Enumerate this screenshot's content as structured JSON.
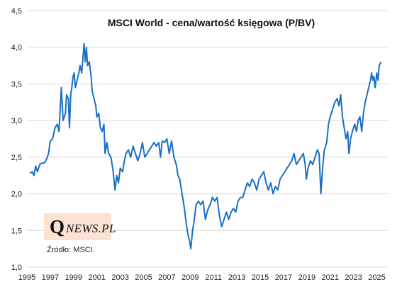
{
  "chart_data": {
    "type": "line",
    "title": "MSCI World - cena/wartość księgowa (P/BV)",
    "xlim": [
      1995,
      2026
    ],
    "ylim": [
      1.0,
      4.5
    ],
    "xticks": [
      "1995",
      "1997",
      "1999",
      "2001",
      "2003",
      "2005",
      "2007",
      "2009",
      "2011",
      "2013",
      "2015",
      "2017",
      "2019",
      "2021",
      "2023",
      "2025"
    ],
    "yticks": [
      "1,0",
      "1,5",
      "2,0",
      "2,5",
      "3,0",
      "3,5",
      "4,0",
      "4,5"
    ],
    "grid": "horizontal",
    "legend": "none",
    "series": [
      {
        "color": "#1a6fc4",
        "points": [
          [
            1995.25,
            2.28
          ],
          [
            1995.45,
            2.3
          ],
          [
            1995.6,
            2.25
          ],
          [
            1995.75,
            2.38
          ],
          [
            1995.9,
            2.3
          ],
          [
            1996.1,
            2.4
          ],
          [
            1996.3,
            2.42
          ],
          [
            1996.5,
            2.42
          ],
          [
            1996.7,
            2.48
          ],
          [
            1996.85,
            2.55
          ],
          [
            1997.0,
            2.72
          ],
          [
            1997.2,
            2.75
          ],
          [
            1997.4,
            2.9
          ],
          [
            1997.6,
            2.95
          ],
          [
            1997.75,
            2.85
          ],
          [
            1997.85,
            3.15
          ],
          [
            1997.95,
            3.45
          ],
          [
            1998.1,
            3.0
          ],
          [
            1998.3,
            3.1
          ],
          [
            1998.4,
            3.35
          ],
          [
            1998.55,
            3.3
          ],
          [
            1998.65,
            2.9
          ],
          [
            1998.75,
            3.35
          ],
          [
            1998.85,
            3.45
          ],
          [
            1998.95,
            3.6
          ],
          [
            1999.05,
            3.65
          ],
          [
            1999.15,
            3.45
          ],
          [
            1999.3,
            3.55
          ],
          [
            1999.45,
            3.65
          ],
          [
            1999.55,
            3.75
          ],
          [
            1999.7,
            3.65
          ],
          [
            1999.8,
            3.85
          ],
          [
            1999.9,
            4.05
          ],
          [
            2000.0,
            3.8
          ],
          [
            2000.1,
            4.0
          ],
          [
            2000.2,
            3.75
          ],
          [
            2000.35,
            3.8
          ],
          [
            2000.5,
            3.6
          ],
          [
            2000.6,
            3.4
          ],
          [
            2000.75,
            3.3
          ],
          [
            2000.9,
            3.2
          ],
          [
            2001.0,
            3.05
          ],
          [
            2001.15,
            3.1
          ],
          [
            2001.3,
            2.9
          ],
          [
            2001.45,
            2.85
          ],
          [
            2001.6,
            2.95
          ],
          [
            2001.7,
            2.55
          ],
          [
            2001.85,
            2.7
          ],
          [
            2002.0,
            2.55
          ],
          [
            2002.2,
            2.5
          ],
          [
            2002.4,
            2.3
          ],
          [
            2002.55,
            2.05
          ],
          [
            2002.7,
            2.25
          ],
          [
            2002.85,
            2.15
          ],
          [
            2003.0,
            2.35
          ],
          [
            2003.2,
            2.3
          ],
          [
            2003.35,
            2.45
          ],
          [
            2003.5,
            2.55
          ],
          [
            2003.7,
            2.6
          ],
          [
            2003.9,
            2.5
          ],
          [
            2004.1,
            2.65
          ],
          [
            2004.3,
            2.55
          ],
          [
            2004.5,
            2.45
          ],
          [
            2004.7,
            2.55
          ],
          [
            2004.9,
            2.7
          ],
          [
            2005.1,
            2.5
          ],
          [
            2005.3,
            2.55
          ],
          [
            2005.5,
            2.6
          ],
          [
            2005.7,
            2.65
          ],
          [
            2005.9,
            2.7
          ],
          [
            2006.1,
            2.65
          ],
          [
            2006.3,
            2.7
          ],
          [
            2006.45,
            2.5
          ],
          [
            2006.6,
            2.72
          ],
          [
            2006.8,
            2.7
          ],
          [
            2007.0,
            2.75
          ],
          [
            2007.2,
            2.55
          ],
          [
            2007.4,
            2.72
          ],
          [
            2007.6,
            2.5
          ],
          [
            2007.8,
            2.4
          ],
          [
            2007.95,
            2.25
          ],
          [
            2008.1,
            2.2
          ],
          [
            2008.3,
            2.0
          ],
          [
            2008.5,
            1.8
          ],
          [
            2008.65,
            1.6
          ],
          [
            2008.8,
            1.45
          ],
          [
            2008.95,
            1.35
          ],
          [
            2009.05,
            1.25
          ],
          [
            2009.2,
            1.5
          ],
          [
            2009.35,
            1.65
          ],
          [
            2009.5,
            1.85
          ],
          [
            2009.7,
            1.9
          ],
          [
            2009.9,
            1.85
          ],
          [
            2010.1,
            1.9
          ],
          [
            2010.3,
            1.65
          ],
          [
            2010.5,
            1.78
          ],
          [
            2010.7,
            1.85
          ],
          [
            2010.9,
            1.95
          ],
          [
            2011.1,
            1.9
          ],
          [
            2011.3,
            1.95
          ],
          [
            2011.5,
            1.7
          ],
          [
            2011.7,
            1.55
          ],
          [
            2011.9,
            1.65
          ],
          [
            2012.1,
            1.75
          ],
          [
            2012.3,
            1.65
          ],
          [
            2012.5,
            1.75
          ],
          [
            2012.7,
            1.8
          ],
          [
            2012.9,
            1.75
          ],
          [
            2013.1,
            1.9
          ],
          [
            2013.3,
            1.95
          ],
          [
            2013.5,
            1.95
          ],
          [
            2013.7,
            2.05
          ],
          [
            2013.9,
            2.15
          ],
          [
            2014.1,
            2.1
          ],
          [
            2014.3,
            2.2
          ],
          [
            2014.5,
            2.15
          ],
          [
            2014.7,
            2.05
          ],
          [
            2014.9,
            2.2
          ],
          [
            2015.1,
            2.25
          ],
          [
            2015.3,
            2.3
          ],
          [
            2015.5,
            2.15
          ],
          [
            2015.7,
            2.05
          ],
          [
            2015.9,
            2.15
          ],
          [
            2016.1,
            2.0
          ],
          [
            2016.3,
            2.1
          ],
          [
            2016.5,
            2.05
          ],
          [
            2016.7,
            2.2
          ],
          [
            2016.9,
            2.25
          ],
          [
            2017.1,
            2.3
          ],
          [
            2017.3,
            2.35
          ],
          [
            2017.5,
            2.4
          ],
          [
            2017.7,
            2.45
          ],
          [
            2017.9,
            2.55
          ],
          [
            2018.1,
            2.4
          ],
          [
            2018.3,
            2.45
          ],
          [
            2018.5,
            2.5
          ],
          [
            2018.7,
            2.55
          ],
          [
            2018.85,
            2.4
          ],
          [
            2018.95,
            2.2
          ],
          [
            2019.1,
            2.35
          ],
          [
            2019.3,
            2.45
          ],
          [
            2019.5,
            2.4
          ],
          [
            2019.7,
            2.5
          ],
          [
            2019.9,
            2.6
          ],
          [
            2020.05,
            2.55
          ],
          [
            2020.2,
            2.0
          ],
          [
            2020.35,
            2.35
          ],
          [
            2020.5,
            2.6
          ],
          [
            2020.7,
            2.7
          ],
          [
            2020.85,
            2.95
          ],
          [
            2021.0,
            3.05
          ],
          [
            2021.2,
            3.15
          ],
          [
            2021.4,
            3.25
          ],
          [
            2021.6,
            3.3
          ],
          [
            2021.75,
            3.2
          ],
          [
            2021.9,
            3.35
          ],
          [
            2022.05,
            3.05
          ],
          [
            2022.2,
            2.9
          ],
          [
            2022.35,
            2.75
          ],
          [
            2022.5,
            2.85
          ],
          [
            2022.6,
            2.55
          ],
          [
            2022.75,
            2.75
          ],
          [
            2022.9,
            2.85
          ],
          [
            2023.1,
            2.95
          ],
          [
            2023.25,
            2.85
          ],
          [
            2023.4,
            3.0
          ],
          [
            2023.55,
            3.05
          ],
          [
            2023.7,
            2.85
          ],
          [
            2023.85,
            3.1
          ],
          [
            2024.0,
            3.25
          ],
          [
            2024.15,
            3.35
          ],
          [
            2024.3,
            3.45
          ],
          [
            2024.45,
            3.55
          ],
          [
            2024.55,
            3.65
          ],
          [
            2024.65,
            3.55
          ],
          [
            2024.75,
            3.6
          ],
          [
            2024.85,
            3.45
          ],
          [
            2025.0,
            3.65
          ],
          [
            2025.1,
            3.55
          ],
          [
            2025.2,
            3.75
          ],
          [
            2025.35,
            3.8
          ]
        ]
      }
    ]
  },
  "logo": {
    "q": "Q",
    "news": "NEWS.PL"
  },
  "source": "Źródło: MSCI."
}
